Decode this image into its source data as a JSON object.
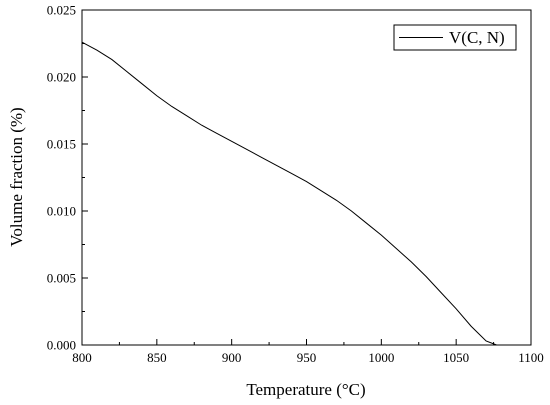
{
  "chart_data": {
    "type": "line",
    "xlabel": "Temperature (°C)",
    "ylabel": "Volume fraction (%)",
    "xlim": [
      800,
      1100
    ],
    "ylim": [
      0.0,
      0.025
    ],
    "x_ticks": [
      "800",
      "850",
      "900",
      "950",
      "1000",
      "1050",
      "1100"
    ],
    "y_ticks": [
      "0.000",
      "0.005",
      "0.010",
      "0.015",
      "0.020",
      "0.025"
    ],
    "grid": false,
    "legend_position": "top-right",
    "series": [
      {
        "name": "V(C, N)",
        "color": "#000000",
        "x": [
          800,
          810,
          820,
          830,
          840,
          850,
          860,
          870,
          880,
          890,
          900,
          910,
          920,
          930,
          940,
          950,
          960,
          970,
          980,
          990,
          1000,
          1010,
          1020,
          1030,
          1040,
          1050,
          1060,
          1070,
          1077
        ],
        "y": [
          0.0226,
          0.022,
          0.0213,
          0.0204,
          0.0195,
          0.0186,
          0.0178,
          0.0171,
          0.0164,
          0.0158,
          0.0152,
          0.0146,
          0.014,
          0.0134,
          0.0128,
          0.0122,
          0.0115,
          0.0108,
          0.01,
          0.0091,
          0.0082,
          0.0072,
          0.0062,
          0.0051,
          0.0039,
          0.0027,
          0.0014,
          0.0003,
          0.0
        ]
      }
    ]
  }
}
